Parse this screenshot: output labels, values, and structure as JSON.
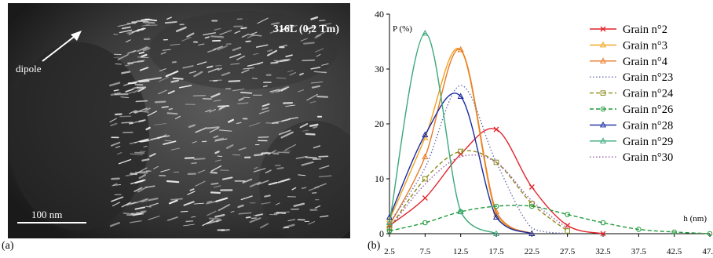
{
  "figure": {
    "panel_a": {
      "label": "(a)",
      "title": "316L (0,2 Tm)",
      "annotation": "dipole",
      "scale_bar": "100 nm"
    },
    "panel_b": {
      "label": "(b)"
    }
  },
  "chart_data": {
    "type": "line",
    "ylabel": "P (%)",
    "xlabel": "h (nm)",
    "ylim": [
      0,
      40
    ],
    "xlim": [
      2.5,
      47.5
    ],
    "yticks": [
      "0",
      "10",
      "20",
      "30",
      "40"
    ],
    "xticks": [
      "2.5",
      "7.5",
      "12.5",
      "17.5",
      "22.5",
      "27.5",
      "32.5",
      "37.5",
      "42.5",
      "47.5"
    ],
    "legend_position": "top-right",
    "series": [
      {
        "name": "Grain n°2",
        "color": "#e0242c",
        "dash": "solid",
        "marker": "x",
        "x": [
          2.5,
          7.5,
          12.5,
          17.5,
          22.5,
          27.5,
          32.5
        ],
        "y": [
          1.5,
          6.5,
          14.5,
          19,
          8.5,
          1.5,
          0
        ]
      },
      {
        "name": "Grain n°3",
        "color": "#f2a21c",
        "dash": "solid",
        "marker": "triangle",
        "x": [
          2.5,
          7.5,
          12.5,
          17.5,
          22.5
        ],
        "y": [
          2.5,
          17.5,
          33.5,
          3.5,
          0
        ]
      },
      {
        "name": "Grain n°4",
        "color": "#e87b2a",
        "dash": "solid",
        "marker": "triangle",
        "x": [
          2.5,
          7.5,
          12.5,
          17.5,
          22.5
        ],
        "y": [
          1.5,
          14,
          33.5,
          4,
          0
        ]
      },
      {
        "name": "Grain n°23",
        "color": "#6a6fb0",
        "dash": "dotted",
        "marker": "none",
        "x": [
          2.5,
          7.5,
          12.5,
          17.5,
          22.5,
          27.5
        ],
        "y": [
          2,
          12,
          27,
          13,
          1,
          0
        ]
      },
      {
        "name": "Grain n°24",
        "color": "#8a8a1a",
        "dash": "dashed",
        "marker": "square",
        "x": [
          2.5,
          7.5,
          12.5,
          17.5,
          22.5,
          27.5
        ],
        "y": [
          1,
          10,
          15,
          13,
          5.5,
          0.5
        ]
      },
      {
        "name": "Grain n°26",
        "color": "#1f9a3a",
        "dash": "dashed",
        "marker": "circle",
        "x": [
          2.5,
          7.5,
          12.5,
          17.5,
          22.5,
          27.5,
          32.5,
          37.5,
          42.5,
          47.5
        ],
        "y": [
          0.5,
          2,
          4,
          5,
          5,
          3.5,
          2,
          0.8,
          0.3,
          0
        ]
      },
      {
        "name": "Grain n°28",
        "color": "#1a2aa0",
        "dash": "solid",
        "marker": "triangle",
        "x": [
          2.5,
          7.5,
          12.5,
          17.5,
          22.5
        ],
        "y": [
          3,
          18,
          25,
          3,
          0
        ]
      },
      {
        "name": "Grain n°29",
        "color": "#3aa87a",
        "dash": "solid",
        "marker": "triangle",
        "x": [
          2.5,
          7.5,
          12.5,
          17.5
        ],
        "y": [
          2,
          36.5,
          4,
          0
        ]
      },
      {
        "name": "Grain n°30",
        "color": "#9a5aa8",
        "dash": "dotted",
        "marker": "none",
        "x": [
          2.5,
          7.5,
          12.5,
          17.5,
          22.5,
          27.5
        ],
        "y": [
          1,
          9,
          14,
          13,
          6,
          1
        ]
      }
    ]
  }
}
